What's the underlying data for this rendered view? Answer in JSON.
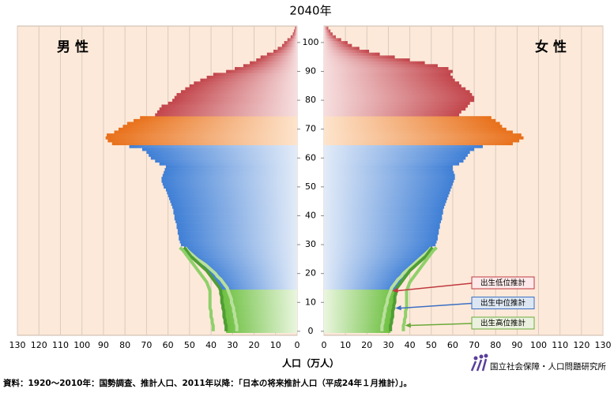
{
  "chart_data": {
    "type": "pyramid",
    "title": "2040年",
    "xlabel": "人口（万人）",
    "source": "資料：1920～2010年：国勢調査、推計人口、2011年以降：「日本の将来推計人口（平成24年１月推計）」。",
    "organization": "国立社会保障・人口問題研究所",
    "xlim": [
      0,
      130
    ],
    "xticks": [
      0,
      10,
      20,
      30,
      40,
      50,
      60,
      70,
      80,
      90,
      100,
      110,
      120,
      130
    ],
    "ylim": [
      -1.4,
      105.7
    ],
    "yticks": [
      0,
      10,
      20,
      30,
      40,
      50,
      60,
      70,
      80,
      90,
      100
    ],
    "grid": true,
    "ages": [
      0,
      1,
      2,
      3,
      4,
      5,
      6,
      7,
      8,
      9,
      10,
      11,
      12,
      13,
      14,
      15,
      16,
      17,
      18,
      19,
      20,
      21,
      22,
      23,
      24,
      25,
      26,
      27,
      28,
      29,
      30,
      31,
      32,
      33,
      34,
      35,
      36,
      37,
      38,
      39,
      40,
      41,
      42,
      43,
      44,
      45,
      46,
      47,
      48,
      49,
      50,
      51,
      52,
      53,
      54,
      55,
      56,
      57,
      58,
      59,
      60,
      61,
      62,
      63,
      64,
      65,
      66,
      67,
      68,
      69,
      70,
      71,
      72,
      73,
      74,
      75,
      76,
      77,
      78,
      79,
      80,
      81,
      82,
      83,
      84,
      85,
      86,
      87,
      88,
      89,
      90,
      91,
      92,
      93,
      94,
      95,
      96,
      97,
      98,
      99,
      100,
      101,
      102,
      103,
      104,
      105
    ],
    "age_groups": [
      {
        "min_age": 0,
        "color": "#6cbf3f",
        "light": "#eaf6df"
      },
      {
        "min_age": 15,
        "color": "#3f7fd6",
        "light": "#e2ebf8"
      },
      {
        "min_age": 65,
        "color": "#e8701a",
        "light": "#fde4cc"
      },
      {
        "min_age": 75,
        "color": "#c2454b",
        "light": "#f7dfe0"
      }
    ],
    "series": [
      {
        "name": "男 性",
        "side": "left",
        "values": [
          33,
          33,
          33,
          33.5,
          33.5,
          34,
          34,
          34,
          34.5,
          34.5,
          35,
          35,
          35,
          35.5,
          35.5,
          36,
          37,
          38,
          39,
          40,
          41,
          42,
          43.5,
          45,
          46.5,
          48,
          49.5,
          50.5,
          51.5,
          52.5,
          54,
          54.5,
          55,
          55,
          55.5,
          55.5,
          56,
          56,
          56.5,
          57,
          57,
          57.5,
          57.5,
          58,
          58.5,
          59,
          59.5,
          60,
          60.5,
          61,
          62,
          62.5,
          63,
          63,
          62.5,
          62,
          61.5,
          61,
          64,
          66,
          68,
          69,
          70,
          72,
          78,
          86,
          88,
          89,
          88.5,
          85,
          83,
          81,
          79,
          76,
          73,
          66,
          65,
          64,
          63,
          60,
          58,
          57,
          56,
          54,
          52,
          50,
          48,
          45,
          42,
          39,
          33,
          29,
          25,
          22,
          19,
          17,
          14,
          11,
          9,
          7,
          6,
          4.5,
          3,
          2,
          1.5,
          1
        ]
      },
      {
        "name": "女 性",
        "side": "right",
        "values": [
          31,
          31,
          31,
          31.5,
          31.5,
          32,
          32,
          32,
          32.5,
          32.5,
          33,
          33,
          33,
          33.5,
          33.5,
          34,
          35,
          36,
          37,
          38,
          39,
          40,
          41.5,
          43,
          44.5,
          46,
          47.5,
          48.5,
          49.5,
          50.5,
          52,
          52.5,
          53,
          53,
          53.5,
          53.5,
          54,
          54,
          54.5,
          55,
          55,
          55.5,
          55.5,
          56,
          56.5,
          57,
          57.5,
          58,
          58.5,
          59,
          59.5,
          60,
          60.5,
          61,
          61,
          60.5,
          60,
          60,
          63,
          65,
          66,
          67,
          68,
          70,
          74,
          88,
          91,
          93,
          92,
          88,
          85,
          83,
          82,
          80,
          78,
          63,
          64,
          66,
          67,
          68,
          70,
          70,
          69,
          68,
          66,
          64,
          63,
          61,
          60,
          59,
          60,
          58,
          53,
          47,
          40,
          33,
          26,
          21,
          16.5,
          13,
          11,
          8,
          5.5,
          4,
          3,
          2
        ]
      }
    ],
    "projections": [
      {
        "name": "出生低位推計",
        "color": "#c0393f",
        "fill": "#fde9e9",
        "line_color": "#b9e09c",
        "male": [
          28,
          28,
          28,
          28.5,
          28.5,
          29,
          29,
          29.5,
          29.5,
          30,
          30.5,
          30.5,
          31,
          31.5,
          32,
          32.5,
          33.5,
          34.5,
          35.5,
          37,
          38,
          39.5,
          41,
          42.5,
          44.5,
          46.5,
          48,
          49.5,
          51,
          52
        ],
        "female": [
          27,
          27,
          27,
          27.5,
          27.5,
          28,
          28,
          28.5,
          28.5,
          29,
          29.5,
          29.5,
          30,
          30.5,
          31,
          31.5,
          32.5,
          33.5,
          34.5,
          36,
          37,
          38.5,
          40,
          41.5,
          43,
          44.5,
          46,
          47.5,
          49,
          50
        ]
      },
      {
        "name": "出生中位推計",
        "color": "#3a6fc4",
        "fill": "#dce6f2",
        "line_color": "#4f9e34"
      },
      {
        "name": "出生高位推計",
        "color": "#6aaa3a",
        "fill": "#ebf1de",
        "line_color": "#8fd06a",
        "male": [
          39,
          39,
          39,
          39.5,
          39.5,
          40,
          40,
          40,
          40.5,
          40.5,
          40.5,
          40.5,
          40.5,
          40.5,
          40.5,
          41,
          41.5,
          42,
          43,
          44,
          45,
          46,
          47,
          48,
          49,
          50,
          51,
          52,
          53,
          54.5
        ],
        "female": [
          37,
          37,
          37,
          37.5,
          37.5,
          38,
          38,
          38,
          38.5,
          38.5,
          38.5,
          38.5,
          38.5,
          38.5,
          38.5,
          39,
          39.5,
          40,
          41,
          42,
          43,
          44,
          45,
          46,
          47,
          48,
          49,
          50,
          51,
          52.5
        ]
      }
    ]
  }
}
